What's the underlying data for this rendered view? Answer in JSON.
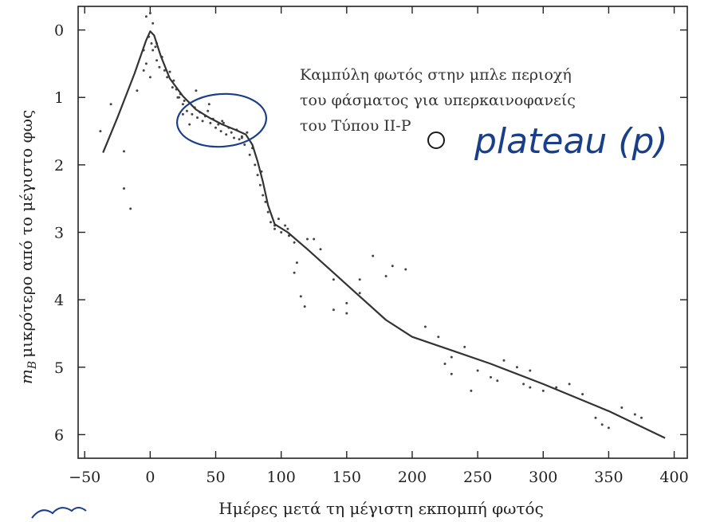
{
  "chart_data": {
    "type": "line",
    "xlabel": "Ημέρες μετά τη μέγιστη εκπομπή φωτός",
    "ylabel_main": "μικρότερο από το μέγιστο φως",
    "ylabel_symbol": "m",
    "ylabel_subscript": "B",
    "xlim": [
      -55,
      410
    ],
    "ylim": [
      6.35,
      -0.35
    ],
    "y_inverted": true,
    "x_ticks": [
      -50,
      0,
      50,
      100,
      150,
      200,
      250,
      300,
      350,
      400
    ],
    "x_tick_labels": [
      "−50",
      "0",
      "50",
      "100",
      "150",
      "200",
      "250",
      "300",
      "350",
      "400"
    ],
    "y_ticks": [
      0,
      1,
      2,
      3,
      4,
      5,
      6
    ],
    "y_tick_labels": [
      "0",
      "1",
      "2",
      "3",
      "4",
      "5",
      "6"
    ],
    "grid": false,
    "annotation_lines": [
      "Καμπύλη φωτός στην μπλε περιοχή",
      "του φάσματος για υπερκαινοφανείς",
      "του Τύπου II-P"
    ],
    "handwritten_note": "plateau (p)",
    "series": [
      {
        "type": "line",
        "x": [
          -36,
          -25,
          -12,
          -3,
          0,
          3,
          8,
          15,
          25,
          35,
          45,
          55,
          65,
          73,
          78,
          82,
          86,
          90,
          95,
          105,
          120,
          140,
          160,
          180,
          200,
          230,
          260,
          300,
          350,
          393
        ],
        "y": [
          1.82,
          1.3,
          0.65,
          0.15,
          0.02,
          0.08,
          0.38,
          0.72,
          0.98,
          1.18,
          1.3,
          1.4,
          1.48,
          1.55,
          1.7,
          1.95,
          2.25,
          2.6,
          2.88,
          3.0,
          3.25,
          3.6,
          3.95,
          4.3,
          4.55,
          4.75,
          4.95,
          5.25,
          5.65,
          6.05
        ]
      },
      {
        "type": "scatter",
        "x": [
          -38,
          -30,
          -20,
          -15,
          -10,
          -5,
          -3,
          -1,
          0,
          1,
          2,
          4,
          5,
          7,
          9,
          11,
          13,
          15,
          17,
          18,
          20,
          21,
          23,
          25,
          26,
          28,
          30,
          32,
          34,
          36,
          38,
          40,
          42,
          44,
          46,
          48,
          50,
          52,
          54,
          56,
          58,
          60,
          62,
          64,
          66,
          68,
          70,
          72,
          74,
          76,
          78,
          80,
          82,
          84,
          86,
          88,
          90,
          92,
          95,
          98,
          100,
          103,
          106,
          110,
          115,
          120,
          125,
          130,
          140,
          150,
          160,
          170,
          180,
          185,
          195,
          210,
          220,
          225,
          230,
          240,
          250,
          260,
          270,
          280,
          285,
          290,
          300,
          310,
          320,
          330,
          340,
          345,
          350,
          360,
          370,
          375,
          -3,
          2,
          0,
          5,
          22,
          30,
          45,
          55,
          70,
          85,
          95,
          105,
          110,
          112,
          118,
          140,
          150,
          160,
          230,
          245,
          265,
          290,
          -20,
          -5,
          25,
          35
        ],
        "y": [
          1.5,
          1.1,
          2.35,
          2.65,
          0.9,
          0.3,
          -0.2,
          0.1,
          -0.25,
          0.2,
          -0.1,
          0.25,
          0.45,
          0.55,
          0.4,
          0.6,
          0.7,
          0.62,
          0.85,
          0.75,
          0.88,
          1.0,
          0.95,
          1.1,
          1.05,
          1.2,
          1.08,
          1.25,
          1.15,
          1.3,
          1.22,
          1.35,
          1.28,
          1.2,
          1.38,
          1.32,
          1.45,
          1.4,
          1.5,
          1.38,
          1.55,
          1.45,
          1.52,
          1.6,
          1.48,
          1.62,
          1.58,
          1.7,
          1.52,
          1.85,
          1.75,
          2.0,
          2.15,
          2.3,
          2.45,
          2.55,
          2.7,
          2.85,
          2.95,
          2.8,
          3.0,
          2.9,
          3.05,
          3.6,
          3.95,
          3.1,
          3.1,
          3.25,
          3.7,
          4.05,
          3.9,
          3.35,
          3.65,
          3.5,
          3.55,
          4.4,
          4.55,
          4.95,
          4.85,
          4.7,
          5.05,
          5.15,
          4.9,
          5.0,
          5.25,
          5.3,
          5.35,
          5.3,
          5.25,
          5.4,
          5.75,
          5.85,
          5.9,
          5.6,
          5.7,
          5.75,
          0.5,
          0.3,
          0.7,
          0.2,
          1.0,
          1.4,
          1.1,
          1.35,
          1.6,
          2.1,
          2.9,
          2.95,
          3.15,
          3.45,
          4.1,
          4.15,
          4.2,
          3.7,
          5.1,
          5.35,
          5.2,
          5.05,
          1.8,
          0.6,
          1.25,
          0.9
        ]
      }
    ]
  }
}
